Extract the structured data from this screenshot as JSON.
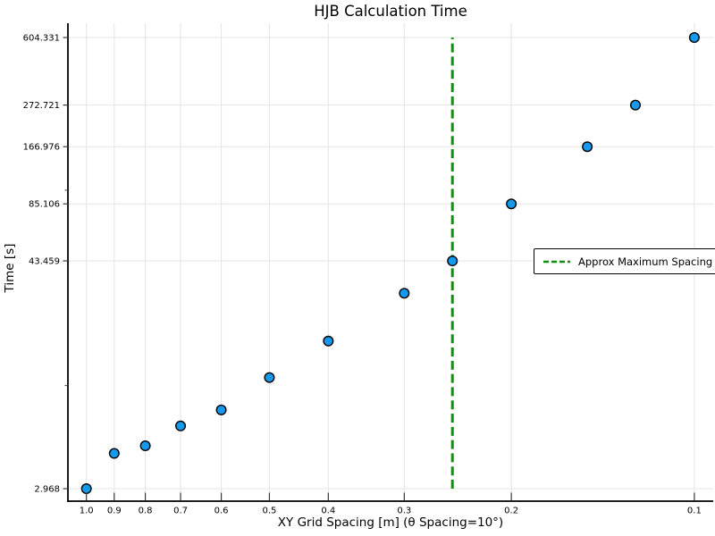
{
  "chart_data": {
    "type": "scatter",
    "title": "HJB Calculation Time",
    "xlabel": "XY Grid Spacing [m] (θ Spacing=10°)",
    "ylabel": "Time [s]",
    "x_scale": "log",
    "y_scale": "log",
    "x_axis_reversed": true,
    "xlim": [
      1.0725,
      0.0931
    ],
    "ylim": [
      2.562,
      715.3
    ],
    "grid": true,
    "x_ticks": {
      "values": [
        1.0,
        0.9,
        0.8,
        0.7,
        0.6,
        0.5,
        0.4,
        0.3,
        0.2,
        0.1
      ],
      "labels": [
        "1.0",
        "0.9",
        "0.8",
        "0.7",
        "0.6",
        "0.5",
        "0.4",
        "0.3",
        "0.2",
        "0.1"
      ]
    },
    "y_ticks": {
      "values": [
        2.968,
        43.459,
        85.106,
        166.976,
        272.721,
        604.331
      ],
      "labels": [
        "2.968",
        "43.459",
        "85.106",
        "166.976",
        "272.721",
        "604.331"
      ]
    },
    "y_minor_ticks": [
      10,
      100
    ],
    "series": [
      {
        "name": "HJB calculation time",
        "marker": {
          "shape": "circle",
          "fill": "#1499ec",
          "edge": "#000000",
          "radius": 5.3
        },
        "x": [
          1.0,
          0.9,
          0.8,
          0.7,
          0.6,
          0.5,
          0.4,
          0.3,
          0.25,
          0.2,
          0.15,
          0.125,
          0.1
        ],
        "y": [
          2.968,
          4.5,
          4.92,
          6.22,
          7.51,
          11.0,
          16.9,
          29.7,
          43.459,
          85.106,
          166.976,
          272.721,
          604.331
        ]
      }
    ],
    "vline": {
      "x": 0.25,
      "y_from": 2.968,
      "y_to": 604.331,
      "color": "#0a930a",
      "style": "dashed",
      "label": "Approx Maximum Spacing"
    },
    "legend": {
      "position": "right-middle",
      "entries": [
        {
          "label": "Approx Maximum Spacing",
          "color": "#0a930a",
          "style": "dashed"
        }
      ]
    },
    "colors": {
      "grid": "#e4e4e4",
      "spine": "#000000",
      "tick": "#3a3a3a",
      "text": "#000000"
    }
  }
}
